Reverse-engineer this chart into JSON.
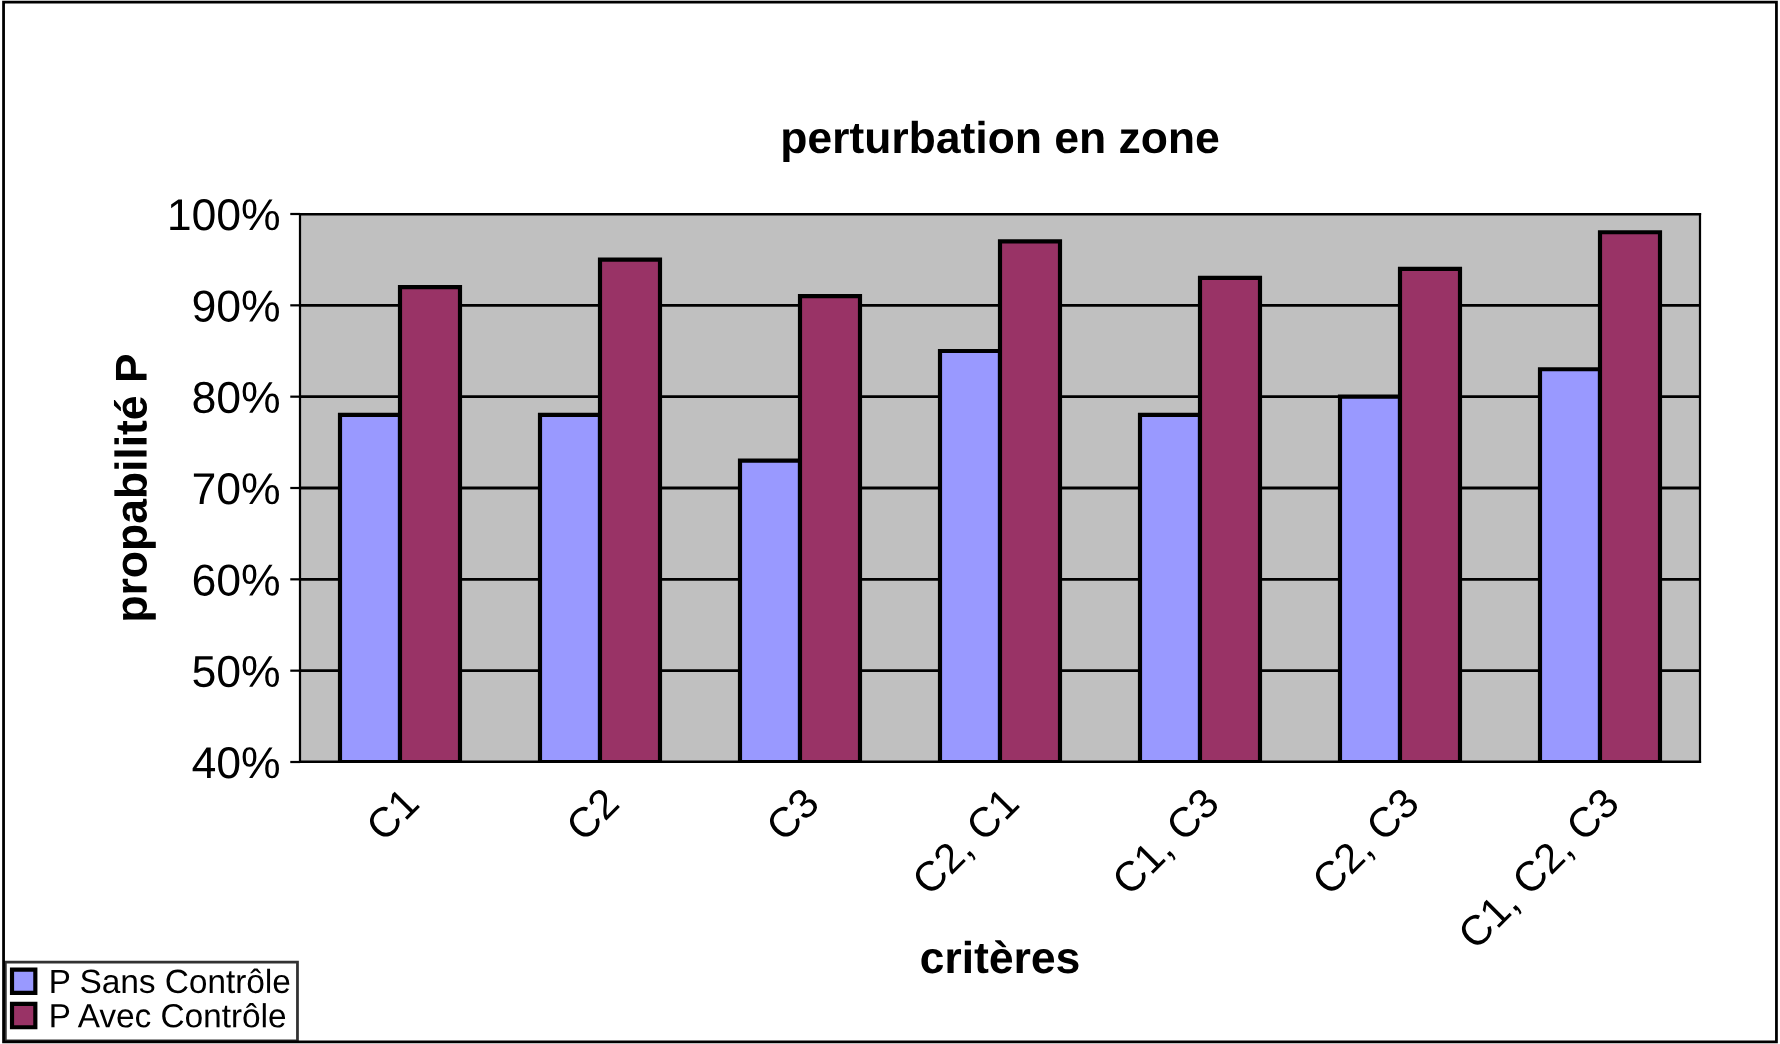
{
  "chart_data": {
    "type": "bar",
    "title": "perturbation en zone",
    "xlabel": "critères",
    "ylabel": "propabilité P",
    "categories": [
      "C1",
      "C2",
      "C3",
      "C2, C1",
      "C1, C3",
      "C2, C3",
      "C1, C2, C3"
    ],
    "series": [
      {
        "name": "P Sans Contrôle",
        "color": "#9999ff",
        "values": [
          78,
          78,
          73,
          85,
          78,
          80,
          83
        ]
      },
      {
        "name": "P Avec Contrôle",
        "color": "#993366",
        "values": [
          92,
          95,
          91,
          97,
          93,
          94,
          98
        ]
      }
    ],
    "ylim": [
      40,
      100
    ],
    "yticks": [
      {
        "value": 40,
        "label": "40%"
      },
      {
        "value": 50,
        "label": "50%"
      },
      {
        "value": 60,
        "label": "60%"
      },
      {
        "value": 70,
        "label": "70%"
      },
      {
        "value": 80,
        "label": "80%"
      },
      {
        "value": 90,
        "label": "90%"
      },
      {
        "value": 100,
        "label": "100%"
      }
    ],
    "grid": "y",
    "legend": "bottom left"
  }
}
